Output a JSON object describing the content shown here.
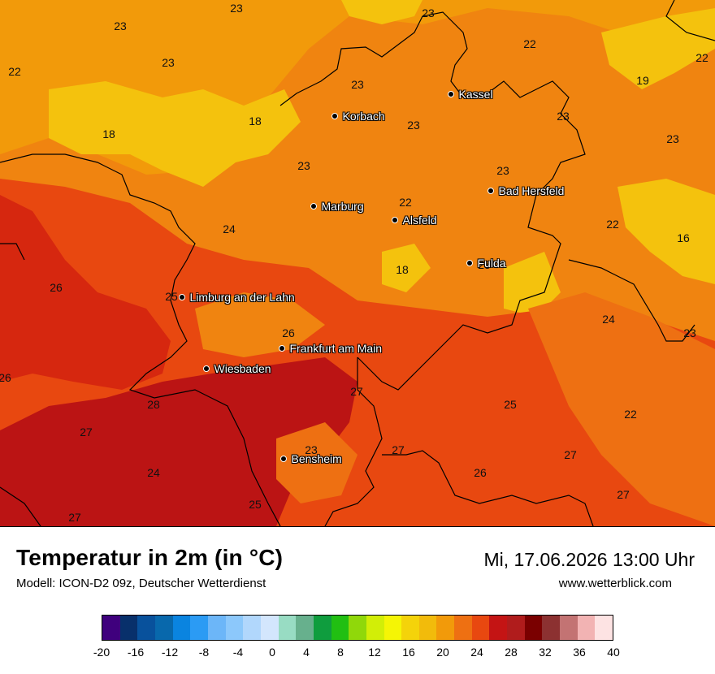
{
  "header": {
    "title": "Temperatur in 2m (in °C)",
    "model": "Modell: ICON-D2 09z, Deutscher Wetterdienst",
    "datetime": "Mi, 17.06.2026 13:00 Uhr",
    "website": "www.wetterblick.com"
  },
  "colors": {
    "t16_18": "#f4c20d",
    "t18_20": "#f29a0a",
    "t20_22": "#f08410",
    "t22_24": "#ee7012",
    "t24_26": "#e84810",
    "t26_28": "#d6270f",
    "t28_30": "#bb1414",
    "border": "#000000"
  },
  "cities": [
    {
      "name": "Kassel"
    },
    {
      "name": "Korbach"
    },
    {
      "name": "Bad Hersfeld"
    },
    {
      "name": "Marburg"
    },
    {
      "name": "Alsfeld"
    },
    {
      "name": "Fulda"
    },
    {
      "name": "Limburg an der Lahn"
    },
    {
      "name": "Frankfurt am Main"
    },
    {
      "name": "Wiesbaden"
    },
    {
      "name": "Bensheim"
    }
  ],
  "temperature_labels": [
    "23",
    "23",
    "23",
    "22",
    "22",
    "19",
    "22",
    "23",
    "23",
    "18",
    "18",
    "23",
    "23",
    "23",
    "23",
    "23",
    "22",
    "22",
    "24",
    "16",
    "18",
    "25",
    "26",
    "25",
    "24",
    "26",
    "23",
    "26",
    "27",
    "28",
    "25",
    "22",
    "27",
    "23",
    "27",
    "27",
    "24",
    "26",
    "25",
    "27"
  ],
  "legend": {
    "ticks": [
      "-20",
      "-16",
      "-12",
      "-8",
      "-4",
      "0",
      "4",
      "8",
      "12",
      "16",
      "20",
      "24",
      "28",
      "32",
      "36",
      "40"
    ],
    "colors": [
      "#3f007d",
      "#08306b",
      "#08519c",
      "#0868ac",
      "#0a84e0",
      "#2b9bf4",
      "#6cb6f8",
      "#8cc8fb",
      "#b1d7fc",
      "#d3e6fd",
      "#98dcc3",
      "#67b08d",
      "#0f9d3e",
      "#21bf12",
      "#90d80a",
      "#d2ee07",
      "#f5f505",
      "#f4d30a",
      "#f2bb0b",
      "#f29a0a",
      "#ee7012",
      "#e84810",
      "#c41414",
      "#b01c1c",
      "#7a0000",
      "#8c3131",
      "#c37373",
      "#f2b3b3",
      "#fde3e3"
    ]
  }
}
